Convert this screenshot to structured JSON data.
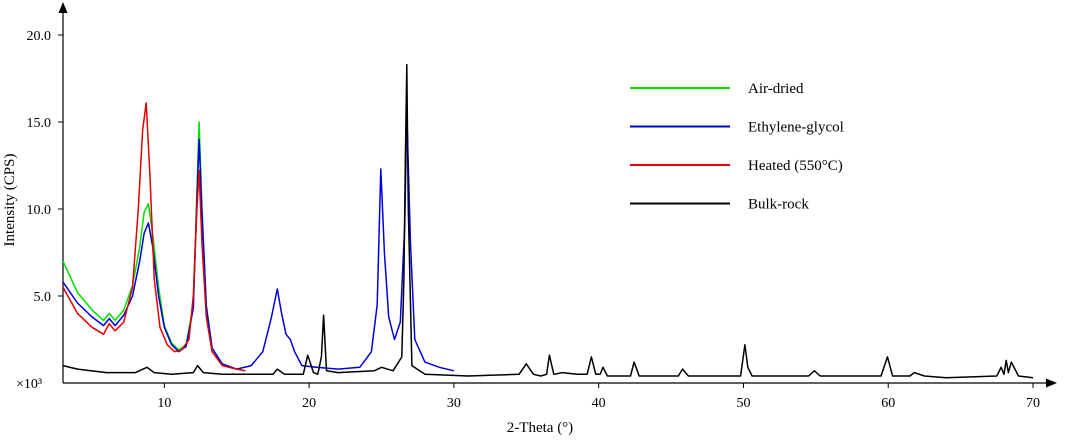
{
  "chart_data": {
    "type": "line",
    "xlabel": "2-Theta (°)",
    "ylabel": "Intensity (CPS)",
    "y_multiplier_label": "×10³",
    "xlim": [
      3,
      70
    ],
    "ylim": [
      0,
      20
    ],
    "x_ticks": [
      10,
      20,
      30,
      40,
      50,
      60,
      70
    ],
    "x_tick_labels": [
      "10",
      "20",
      "30",
      "40",
      "50",
      "60",
      "70"
    ],
    "y_ticks": [
      5,
      10,
      15,
      20
    ],
    "y_tick_labels": [
      "5.0",
      "10.0",
      "15.0",
      "20.0"
    ],
    "legend_position": "top-right",
    "grid": false,
    "series": [
      {
        "name": "Air-dried",
        "color": "#00e000",
        "x": [
          3.0,
          4.0,
          5.0,
          5.8,
          6.2,
          6.6,
          7.2,
          7.8,
          8.3,
          8.6,
          8.9,
          9.2,
          9.6,
          10.0,
          10.5,
          11.0,
          11.5,
          12.0,
          12.25,
          12.4,
          12.6,
          12.9,
          13.3,
          14.0,
          15.0,
          15.6
        ],
        "y": [
          7.0,
          5.2,
          4.2,
          3.6,
          4.0,
          3.6,
          4.2,
          5.6,
          7.8,
          9.8,
          10.3,
          8.5,
          5.5,
          3.3,
          2.3,
          1.9,
          2.2,
          4.5,
          11.0,
          15.0,
          10.0,
          4.5,
          2.0,
          1.1,
          0.8,
          0.7
        ]
      },
      {
        "name": "Ethylene-glycol",
        "color": "#0000dd",
        "x": [
          3.0,
          4.0,
          5.0,
          5.8,
          6.2,
          6.6,
          7.2,
          7.8,
          8.3,
          8.6,
          8.9,
          9.2,
          9.6,
          10.0,
          10.5,
          11.0,
          11.5,
          12.0,
          12.25,
          12.4,
          12.6,
          12.9,
          13.3,
          14.0,
          15.0,
          16.0,
          16.8,
          17.4,
          17.8,
          18.1,
          18.4,
          18.7,
          19.0,
          19.5,
          20.5,
          22.0,
          23.5,
          24.3,
          24.7,
          24.95,
          25.2,
          25.5,
          25.9,
          26.3,
          26.6,
          26.75,
          27.0,
          27.3,
          28.0,
          29.0,
          30.0
        ],
        "y": [
          5.8,
          4.6,
          3.8,
          3.3,
          3.7,
          3.3,
          3.9,
          5.0,
          7.0,
          8.6,
          9.2,
          7.8,
          5.0,
          3.2,
          2.2,
          1.8,
          2.1,
          4.3,
          10.5,
          14.0,
          9.8,
          4.4,
          2.0,
          1.1,
          0.8,
          1.0,
          1.8,
          3.8,
          5.4,
          4.0,
          2.8,
          2.5,
          1.8,
          1.0,
          0.9,
          0.8,
          0.9,
          1.8,
          4.5,
          12.3,
          7.5,
          3.8,
          2.5,
          3.5,
          9.0,
          15.5,
          8.0,
          2.5,
          1.2,
          0.9,
          0.7
        ]
      },
      {
        "name": "Heated (550°C)",
        "color": "#e00000",
        "x": [
          3.0,
          4.0,
          5.0,
          5.8,
          6.2,
          6.6,
          7.2,
          7.8,
          8.2,
          8.5,
          8.75,
          9.0,
          9.3,
          9.7,
          10.2,
          10.7,
          11.2,
          11.7,
          12.0,
          12.25,
          12.4,
          12.6,
          12.9,
          13.3,
          14.0,
          15.0,
          15.6
        ],
        "y": [
          5.5,
          4.0,
          3.2,
          2.8,
          3.4,
          3.0,
          3.5,
          5.5,
          10.0,
          14.5,
          16.1,
          12.0,
          6.0,
          3.2,
          2.2,
          1.8,
          1.9,
          2.5,
          5.0,
          10.0,
          12.2,
          8.0,
          3.8,
          1.8,
          1.0,
          0.8,
          0.7
        ]
      },
      {
        "name": "Bulk-rock",
        "color": "#000000",
        "x": [
          3.0,
          4.0,
          6.0,
          8.0,
          8.8,
          9.3,
          10.5,
          12.0,
          12.3,
          12.7,
          14.0,
          17.5,
          17.8,
          18.3,
          19.6,
          19.9,
          20.3,
          20.6,
          20.85,
          21.0,
          21.2,
          22.0,
          24.5,
          25.0,
          25.8,
          26.4,
          26.55,
          26.65,
          26.75,
          26.85,
          27.1,
          28.0,
          31.0,
          34.5,
          35.0,
          35.5,
          36.0,
          36.4,
          36.6,
          36.9,
          37.5,
          38.5,
          39.2,
          39.5,
          39.8,
          40.1,
          40.3,
          40.6,
          42.2,
          42.45,
          42.8,
          45.5,
          45.8,
          46.2,
          49.8,
          50.1,
          50.3,
          50.6,
          54.5,
          54.9,
          55.3,
          59.5,
          59.95,
          60.3,
          61.5,
          61.8,
          62.5,
          64.0,
          67.5,
          67.8,
          68.0,
          68.15,
          68.3,
          68.5,
          69.0,
          70.0
        ],
        "y": [
          1.0,
          0.8,
          0.6,
          0.6,
          0.9,
          0.6,
          0.5,
          0.6,
          1.0,
          0.6,
          0.5,
          0.5,
          0.8,
          0.5,
          0.5,
          1.6,
          0.6,
          0.5,
          1.5,
          3.9,
          0.7,
          0.6,
          0.7,
          0.9,
          0.7,
          1.5,
          6.0,
          13.0,
          18.3,
          10.0,
          1.0,
          0.5,
          0.4,
          0.5,
          1.1,
          0.5,
          0.4,
          0.5,
          1.6,
          0.5,
          0.6,
          0.5,
          0.5,
          1.5,
          0.5,
          0.5,
          0.9,
          0.4,
          0.4,
          1.2,
          0.4,
          0.4,
          0.8,
          0.4,
          0.4,
          2.2,
          0.9,
          0.4,
          0.4,
          0.7,
          0.4,
          0.4,
          1.5,
          0.4,
          0.4,
          0.6,
          0.4,
          0.3,
          0.4,
          0.9,
          0.5,
          1.3,
          0.6,
          1.2,
          0.4,
          0.3
        ]
      }
    ]
  }
}
